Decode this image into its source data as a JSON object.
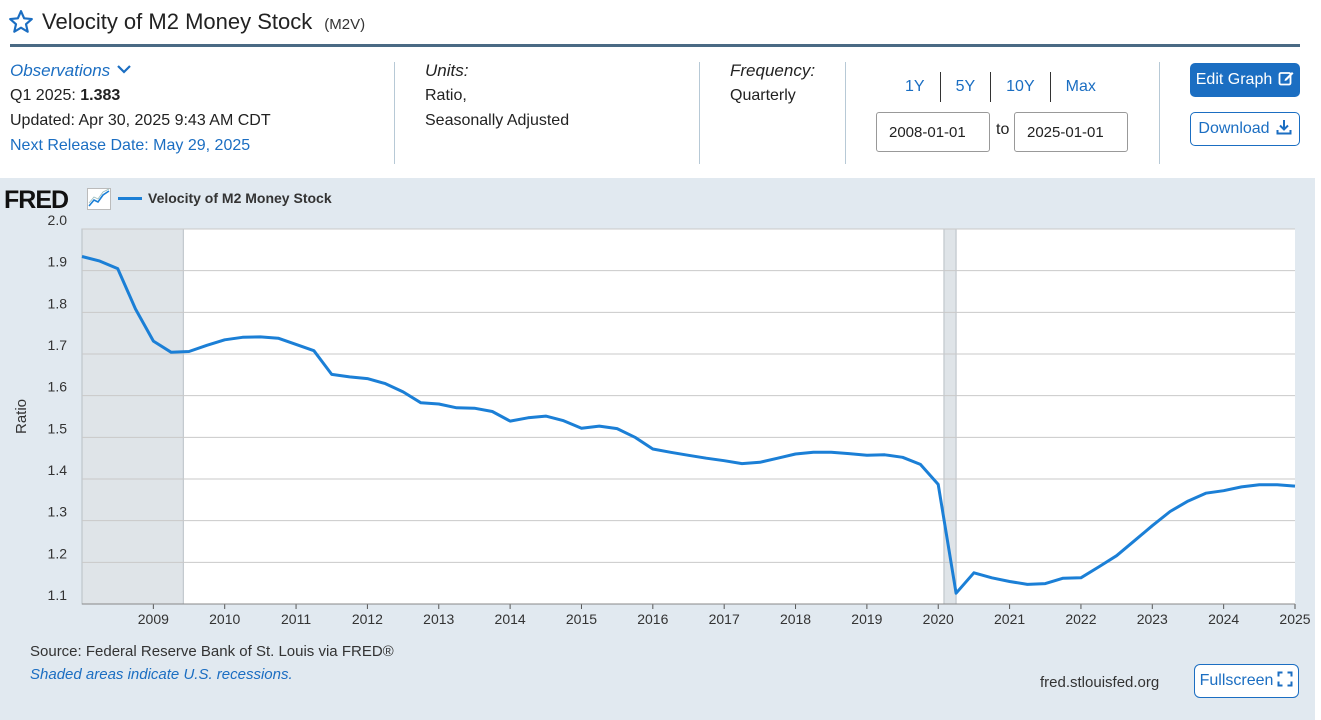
{
  "header": {
    "title": "Velocity of M2 Money Stock",
    "series_id": "(M2V)"
  },
  "observations": {
    "label": "Observations",
    "period": "Q1 2025:",
    "value": "1.383",
    "updated": "Updated: Apr 30, 2025 9:43 AM CDT",
    "next_release": "Next Release Date: May 29, 2025"
  },
  "units": {
    "label": "Units:",
    "line1": "Ratio,",
    "line2": "Seasonally Adjusted"
  },
  "frequency": {
    "label": "Frequency:",
    "value": "Quarterly"
  },
  "range": {
    "buttons": [
      "1Y",
      "5Y",
      "10Y",
      "Max"
    ],
    "start": "2008-01-01",
    "to": "to",
    "end": "2025-01-01"
  },
  "actions": {
    "edit_graph": "Edit Graph",
    "download": "Download",
    "fullscreen": "Fullscreen"
  },
  "graph": {
    "logo": "FRED",
    "legend_label": "Velocity of M2 Money Stock",
    "source": "Source: Federal Reserve Bank of St. Louis via FRED®",
    "shaded_note": "Shaded areas indicate U.S. recessions.",
    "site": "fred.stlouisfed.org"
  },
  "colors": {
    "accent": "#1b6ec2",
    "line": "#1b7fd6",
    "panel": "#e1e9f0",
    "recession": "#dfe4e8"
  },
  "chart_data": {
    "type": "line",
    "ylabel": "Ratio",
    "ylim": [
      1.1,
      2.0
    ],
    "xlim": [
      2008.0,
      2025.0
    ],
    "y_ticks": [
      "1.1",
      "1.2",
      "1.3",
      "1.4",
      "1.5",
      "1.6",
      "1.7",
      "1.8",
      "1.9",
      "2.0"
    ],
    "x_ticks": [
      "2009",
      "2010",
      "2011",
      "2012",
      "2013",
      "2014",
      "2015",
      "2016",
      "2017",
      "2018",
      "2019",
      "2020",
      "2021",
      "2022",
      "2023",
      "2024",
      "2025"
    ],
    "recessions": [
      [
        2008.0,
        2009.42
      ],
      [
        2020.08,
        2020.25
      ]
    ],
    "grid": true,
    "legend": "top-left",
    "series": [
      {
        "name": "Velocity of M2 Money Stock",
        "x": [
          "2008-01-01",
          "2008-04-01",
          "2008-07-01",
          "2008-10-01",
          "2009-01-01",
          "2009-04-01",
          "2009-07-01",
          "2009-10-01",
          "2010-01-01",
          "2010-04-01",
          "2010-07-01",
          "2010-10-01",
          "2011-01-01",
          "2011-04-01",
          "2011-07-01",
          "2011-10-01",
          "2012-01-01",
          "2012-04-01",
          "2012-07-01",
          "2012-10-01",
          "2013-01-01",
          "2013-04-01",
          "2013-07-01",
          "2013-10-01",
          "2014-01-01",
          "2014-04-01",
          "2014-07-01",
          "2014-10-01",
          "2015-01-01",
          "2015-04-01",
          "2015-07-01",
          "2015-10-01",
          "2016-01-01",
          "2016-04-01",
          "2016-07-01",
          "2016-10-01",
          "2017-01-01",
          "2017-04-01",
          "2017-07-01",
          "2017-10-01",
          "2018-01-01",
          "2018-04-01",
          "2018-07-01",
          "2018-10-01",
          "2019-01-01",
          "2019-04-01",
          "2019-07-01",
          "2019-10-01",
          "2020-01-01",
          "2020-04-01",
          "2020-07-01",
          "2020-10-01",
          "2021-01-01",
          "2021-04-01",
          "2021-07-01",
          "2021-10-01",
          "2022-01-01",
          "2022-04-01",
          "2022-07-01",
          "2022-10-01",
          "2023-01-01",
          "2023-04-01",
          "2023-07-01",
          "2023-10-01",
          "2024-01-01",
          "2024-04-01",
          "2024-07-01",
          "2024-10-01",
          "2025-01-01"
        ],
        "values": [
          1.934,
          1.923,
          1.905,
          1.808,
          1.731,
          1.704,
          1.706,
          1.721,
          1.734,
          1.74,
          1.741,
          1.738,
          1.723,
          1.708,
          1.651,
          1.645,
          1.641,
          1.629,
          1.609,
          1.583,
          1.58,
          1.571,
          1.57,
          1.562,
          1.539,
          1.547,
          1.551,
          1.54,
          1.522,
          1.527,
          1.521,
          1.5,
          1.472,
          1.464,
          1.457,
          1.45,
          1.444,
          1.437,
          1.44,
          1.45,
          1.46,
          1.464,
          1.464,
          1.461,
          1.457,
          1.458,
          1.452,
          1.435,
          1.387,
          1.126,
          1.175,
          1.163,
          1.154,
          1.147,
          1.149,
          1.162,
          1.163,
          1.189,
          1.216,
          1.252,
          1.288,
          1.322,
          1.347,
          1.366,
          1.372,
          1.381,
          1.386,
          1.386,
          1.383
        ]
      }
    ]
  }
}
